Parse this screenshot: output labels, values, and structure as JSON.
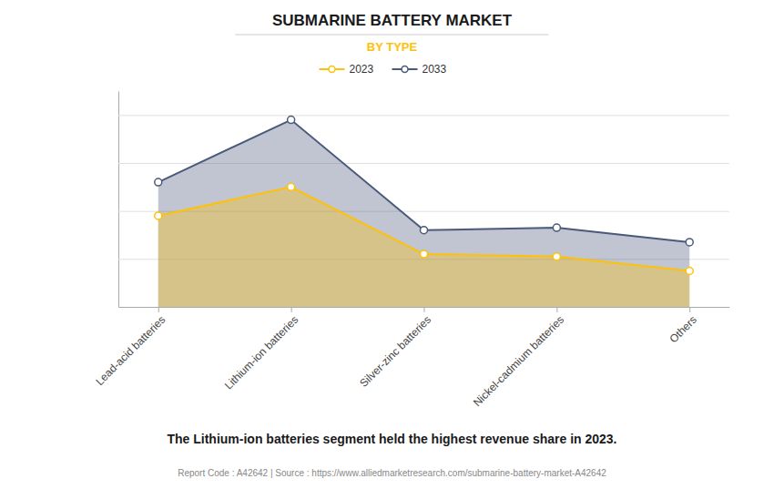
{
  "chart_data": {
    "type": "area",
    "title": "SUBMARINE BATTERY MARKET",
    "subtitle": "BY TYPE",
    "annotations": [
      "The Lithium-ion batteries segment held the highest revenue share in 2023.",
      "Report Code : A42642  |  Source : https://www.alliedmarketresearch.com/submarine-battery-market-A42642"
    ],
    "categories": [
      "Lead-acid batteries",
      "Lithium-ion batteries",
      "Silver-zinc batteries",
      "Nickel-cadmium batteries",
      "Others"
    ],
    "series": [
      {
        "name": "2023",
        "color": "#FFC107",
        "values": [
          3.8,
          5.0,
          2.2,
          2.1,
          1.5
        ]
      },
      {
        "name": "2033",
        "color": "#4a5a7a",
        "values": [
          5.2,
          7.8,
          3.2,
          3.3,
          2.7
        ]
      }
    ],
    "ylim": [
      0,
      9
    ],
    "yticks": [
      0,
      2,
      4,
      6,
      8
    ],
    "grid": true,
    "legend": "top",
    "marker": "circle",
    "tick_labels": "x"
  }
}
